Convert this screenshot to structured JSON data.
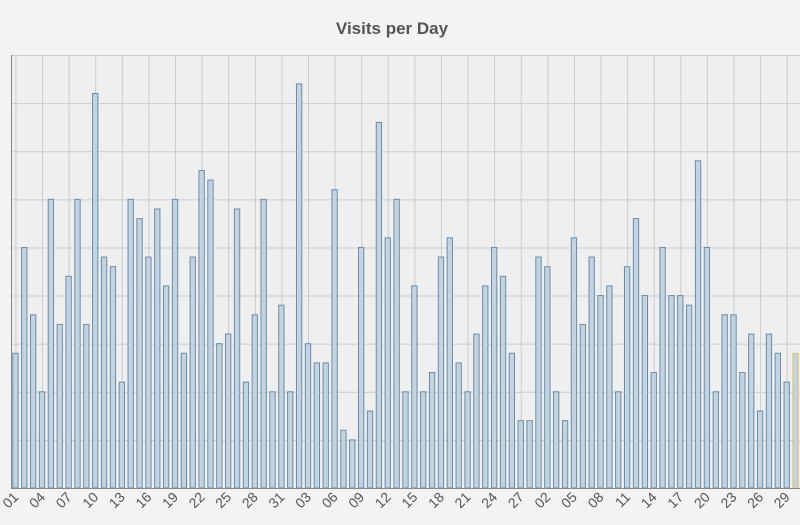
{
  "chart_data": {
    "type": "bar",
    "title": "Visits per Day",
    "xlabel": "",
    "ylabel": "",
    "ylim": [
      0,
      9
    ],
    "grid": true,
    "legend": "none",
    "tick_step": 3,
    "tick_labels": [
      "01",
      "04",
      "07",
      "10",
      "13",
      "16",
      "19",
      "22",
      "25",
      "28",
      "31",
      "03",
      "06",
      "09",
      "12",
      "15",
      "18",
      "21",
      "24",
      "27",
      "02",
      "05",
      "08",
      "11",
      "14",
      "17",
      "20",
      "23",
      "26",
      "29"
    ],
    "values": [
      2.8,
      5,
      3.6,
      2,
      6,
      3.4,
      4.4,
      6,
      3.4,
      8.2,
      4.8,
      4.6,
      2.2,
      6,
      5.6,
      4.8,
      5.8,
      4.2,
      6,
      2.8,
      4.8,
      6.6,
      6.4,
      3,
      3.2,
      5.8,
      2.2,
      3.6,
      6,
      2,
      3.8,
      2,
      8.4,
      3,
      2.6,
      2.6,
      6.2,
      1.2,
      1,
      5,
      1.6,
      7.6,
      5.2,
      6,
      2,
      4.2,
      2,
      2.4,
      4.8,
      5.2,
      2.6,
      2,
      3.2,
      4.2,
      5,
      4.4,
      2.8,
      1.4,
      1.4,
      4.8,
      4.6,
      2,
      1.4,
      5.2,
      3.4,
      4.8,
      4,
      4.2,
      2,
      4.6,
      5.6,
      4,
      2.4,
      5,
      4,
      4,
      3.8,
      6.8,
      5,
      2,
      3.6,
      3.6,
      2.4,
      3.2,
      1.6,
      3.2,
      2.8,
      2.2,
      2.8
    ],
    "colors": {
      "bar_fill": "#c3d3e1",
      "bar_stroke": "#6b8daa",
      "grid": "#cccccc",
      "axis": "#888888",
      "tick_text": "#555555",
      "accent": "#e0c060"
    }
  }
}
